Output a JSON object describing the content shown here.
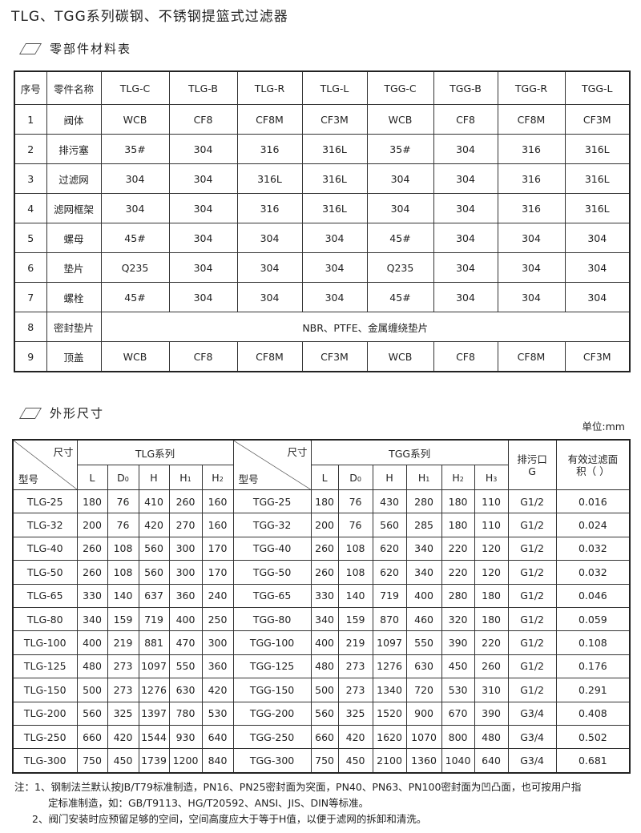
{
  "title": "TLG、TGG系列碳钢、不锈钢提篮式过滤器",
  "materials": {
    "heading": "零部件材料表",
    "headers": [
      "序号",
      "零件名称",
      "TLG-C",
      "TLG-B",
      "TLG-R",
      "TLG-L",
      "TGG-C",
      "TGG-B",
      "TGG-R",
      "TGG-L"
    ],
    "rows": [
      [
        "1",
        "阀体",
        "WCB",
        "CF8",
        "CF8M",
        "CF3M",
        "WCB",
        "CF8",
        "CF8M",
        "CF3M"
      ],
      [
        "2",
        "排污塞",
        "35#",
        "304",
        "316",
        "316L",
        "35#",
        "304",
        "316",
        "316L"
      ],
      [
        "3",
        "过滤网",
        "304",
        "304",
        "316L",
        "316L",
        "304",
        "304",
        "316",
        "316L"
      ],
      [
        "4",
        "滤网框架",
        "304",
        "304",
        "316",
        "316L",
        "304",
        "304",
        "316",
        "316L"
      ],
      [
        "5",
        "螺母",
        "45#",
        "304",
        "304",
        "304",
        "45#",
        "304",
        "304",
        "304"
      ],
      [
        "6",
        "垫片",
        "Q235",
        "304",
        "304",
        "304",
        "Q235",
        "304",
        "304",
        "304"
      ],
      [
        "7",
        "螺栓",
        "45#",
        "304",
        "304",
        "304",
        "45#",
        "304",
        "304",
        "304"
      ],
      [
        "8",
        "密封垫片",
        "NBR、PTFE、金属缠绕垫片"
      ],
      [
        "9",
        "顶盖",
        "WCB",
        "CF8",
        "CF8M",
        "CF3M",
        "WCB",
        "CF8",
        "CF8M",
        "CF3M"
      ]
    ]
  },
  "dimensions": {
    "heading": "外形尺寸",
    "unit": "单位:mm",
    "size_label": "尺寸",
    "model_label": "型号",
    "tlg_series": "TLG系列",
    "tgg_series": "TGG系列",
    "tlg_cols": [
      "L",
      "D0",
      "H",
      "H1",
      "H2"
    ],
    "tgg_cols": [
      "L",
      "D0",
      "H",
      "H1",
      "H2",
      "H3"
    ],
    "drain_label": "排污口G",
    "area_label": "有效过滤面积（ ）",
    "rows": [
      [
        "TLG-25",
        "180",
        "76",
        "410",
        "260",
        "160",
        "TGG-25",
        "180",
        "76",
        "430",
        "280",
        "180",
        "110",
        "G1/2",
        "0.016"
      ],
      [
        "TLG-32",
        "200",
        "76",
        "420",
        "270",
        "160",
        "TGG-32",
        "200",
        "76",
        "560",
        "285",
        "180",
        "110",
        "G1/2",
        "0.024"
      ],
      [
        "TLG-40",
        "260",
        "108",
        "560",
        "300",
        "170",
        "TGG-40",
        "260",
        "108",
        "620",
        "340",
        "220",
        "120",
        "G1/2",
        "0.032"
      ],
      [
        "TLG-50",
        "260",
        "108",
        "560",
        "300",
        "170",
        "TGG-50",
        "260",
        "108",
        "620",
        "340",
        "220",
        "120",
        "G1/2",
        "0.032"
      ],
      [
        "TLG-65",
        "330",
        "140",
        "637",
        "360",
        "240",
        "TGG-65",
        "330",
        "140",
        "719",
        "400",
        "280",
        "180",
        "G1/2",
        "0.046"
      ],
      [
        "TLG-80",
        "340",
        "159",
        "719",
        "400",
        "250",
        "TGG-80",
        "340",
        "159",
        "870",
        "460",
        "320",
        "180",
        "G1/2",
        "0.059"
      ],
      [
        "TLG-100",
        "400",
        "219",
        "881",
        "470",
        "300",
        "TGG-100",
        "400",
        "219",
        "1097",
        "550",
        "390",
        "220",
        "G1/2",
        "0.108"
      ],
      [
        "TLG-125",
        "480",
        "273",
        "1097",
        "550",
        "360",
        "TGG-125",
        "480",
        "273",
        "1276",
        "630",
        "450",
        "260",
        "G1/2",
        "0.176"
      ],
      [
        "TLG-150",
        "500",
        "273",
        "1276",
        "630",
        "420",
        "TGG-150",
        "500",
        "273",
        "1340",
        "720",
        "530",
        "310",
        "G1/2",
        "0.291"
      ],
      [
        "TLG-200",
        "560",
        "325",
        "1397",
        "780",
        "530",
        "TGG-200",
        "560",
        "325",
        "1520",
        "900",
        "670",
        "390",
        "G3/4",
        "0.408"
      ],
      [
        "TLG-250",
        "660",
        "420",
        "1544",
        "930",
        "640",
        "TGG-250",
        "660",
        "420",
        "1620",
        "1070",
        "800",
        "480",
        "G3/4",
        "0.502"
      ],
      [
        "TLG-300",
        "750",
        "450",
        "1739",
        "1200",
        "840",
        "TGG-300",
        "750",
        "450",
        "2100",
        "1360",
        "1040",
        "640",
        "G3/4",
        "0.681"
      ]
    ]
  },
  "notes": [
    "注：1、钢制法兰默认按JB/T79标准制造，PN16、PN25密封面为突面，PN40、PN63、PN100密封面为凹凸面，也可按用户指",
    "定标准制造，如：GB/T9113、HG/T20592、ANSI、JIS、DIN等标准。",
    "2、阀门安装时应预留足够的空间，空间高度应大于等于H值，以便于滤网的拆卸和清洗。"
  ]
}
